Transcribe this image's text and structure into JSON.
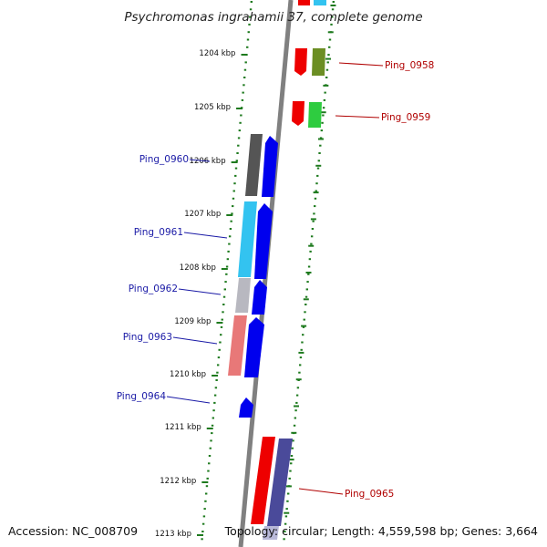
{
  "title": "Psychromonas ingrahamii 37, complete genome",
  "footer": {
    "accession": "Accession: NC_008709",
    "summary": "Topology: circular; Length: 4,559,598 bp; Genes: 3,664"
  },
  "scale_labels": [
    "1204 kbp",
    "1205 kbp",
    "1206 kbp",
    "1207 kbp",
    "1208 kbp",
    "1209 kbp",
    "1210 kbp",
    "1211 kbp",
    "1212 kbp",
    "1213 kbp"
  ],
  "genes_left": [
    "Ping_0960",
    "Ping_0961",
    "Ping_0962",
    "Ping_0963",
    "Ping_0964"
  ],
  "genes_right": [
    "Ping_0958",
    "Ping_0959",
    "Ping_0965"
  ],
  "colors": {
    "backbone": "#808080",
    "ticks": "#1e7a1e",
    "label_left": "#1a1aa6",
    "label_right": "#b00000",
    "strand_blue": "#0000ee",
    "red": "#ee0000",
    "olive": "#6b8e23",
    "green": "#2ecc40",
    "cyan": "#33c3f0",
    "dark_gray": "#555555",
    "light_gray": "#b8b8c0",
    "salmon": "#e87878",
    "slate": "#4a4a9a"
  }
}
